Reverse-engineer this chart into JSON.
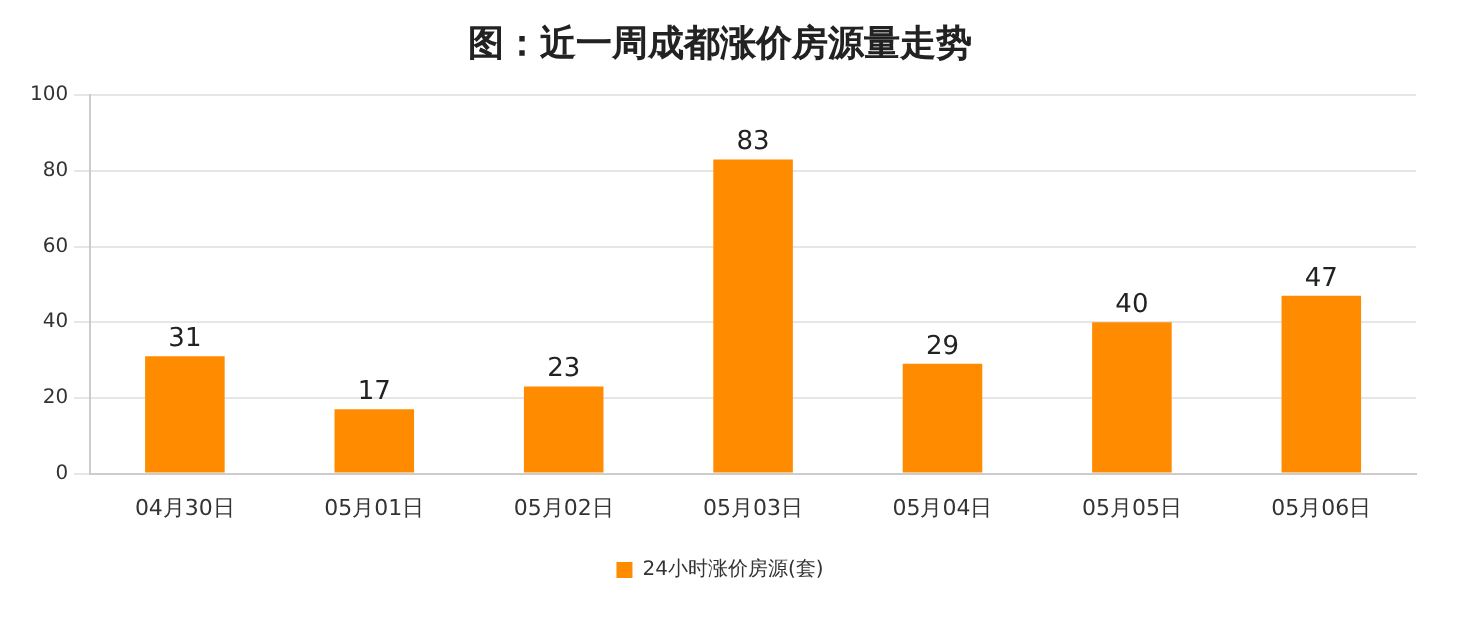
{
  "chart_data": {
    "type": "bar",
    "title": "图：近一周成都涨价房源量走势",
    "categories": [
      "04月30日",
      "05月01日",
      "05月02日",
      "05月03日",
      "05月04日",
      "05月05日",
      "05月06日"
    ],
    "series": [
      {
        "name": "24小时涨价房源(套)",
        "color": "#ff8c00",
        "values": [
          31,
          17,
          23,
          83,
          29,
          40,
          47
        ]
      }
    ],
    "ylim": [
      0,
      100
    ],
    "yticks": [
      0,
      20,
      40,
      60,
      80,
      100
    ],
    "grid": "y",
    "legend": "bottom",
    "data_labels": true
  }
}
